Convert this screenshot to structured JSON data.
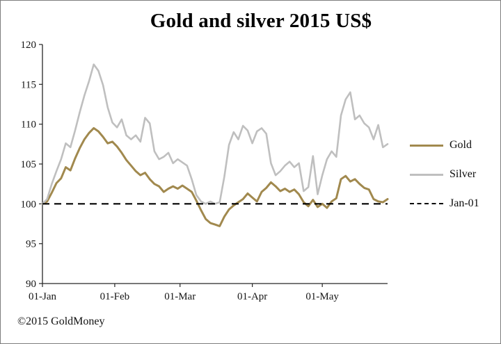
{
  "chart_data": {
    "type": "line",
    "title": "Gold and silver 2015 US$",
    "xlabel": "",
    "ylabel": "",
    "ylim": [
      90,
      120
    ],
    "y_ticks": [
      90,
      95,
      100,
      105,
      110,
      115,
      120
    ],
    "x_range": [
      0,
      148
    ],
    "x_unit": "days since 01-Jan-2015",
    "x_ticks": [
      {
        "pos": 0,
        "label": "01-Jan"
      },
      {
        "pos": 31,
        "label": "01-Feb"
      },
      {
        "pos": 59,
        "label": "01-Mar"
      },
      {
        "pos": 90,
        "label": "01-Apr"
      },
      {
        "pos": 120,
        "label": "01-May"
      }
    ],
    "grid": false,
    "legend_position": "right",
    "axis_color": "#262626",
    "tick_label_color": "#151515",
    "x": [
      0,
      2,
      4,
      6,
      8,
      10,
      12,
      14,
      16,
      18,
      20,
      22,
      24,
      26,
      28,
      30,
      32,
      34,
      36,
      38,
      40,
      42,
      44,
      46,
      48,
      50,
      52,
      54,
      56,
      58,
      60,
      62,
      64,
      66,
      68,
      70,
      72,
      74,
      76,
      78,
      80,
      82,
      84,
      86,
      88,
      90,
      92,
      94,
      96,
      98,
      100,
      102,
      104,
      106,
      108,
      110,
      112,
      114,
      116,
      118,
      120,
      122,
      124,
      126,
      128,
      130,
      132,
      134,
      136,
      138,
      140,
      142,
      144,
      146,
      148
    ],
    "series": [
      {
        "name": "Gold",
        "color": "#A1894E",
        "width": 3,
        "values": [
          100.0,
          100.3,
          101.4,
          102.6,
          103.2,
          104.6,
          104.2,
          105.7,
          107.0,
          108.1,
          108.9,
          109.5,
          109.1,
          108.4,
          107.6,
          107.8,
          107.2,
          106.4,
          105.5,
          104.8,
          104.1,
          103.6,
          103.9,
          103.1,
          102.5,
          102.2,
          101.5,
          101.9,
          102.2,
          101.9,
          102.3,
          101.9,
          101.5,
          100.4,
          99.2,
          98.1,
          97.6,
          97.4,
          97.2,
          98.4,
          99.3,
          99.8,
          100.2,
          100.6,
          101.3,
          100.8,
          100.3,
          101.5,
          102.0,
          102.7,
          102.2,
          101.6,
          101.9,
          101.5,
          101.8,
          101.2,
          100.2,
          99.7,
          100.5,
          99.6,
          100.0,
          99.5,
          100.3,
          100.7,
          103.1,
          103.5,
          102.8,
          103.1,
          102.5,
          102.0,
          101.8,
          100.6,
          100.3,
          100.2,
          100.6
        ]
      },
      {
        "name": "Silver",
        "color": "#BFBFBF",
        "width": 2.6,
        "values": [
          100.0,
          100.6,
          102.5,
          104.1,
          105.6,
          107.6,
          107.1,
          109.2,
          111.5,
          113.6,
          115.4,
          117.5,
          116.7,
          114.9,
          112.1,
          110.2,
          109.6,
          110.6,
          108.6,
          108.1,
          108.6,
          107.8,
          110.8,
          110.1,
          106.6,
          105.6,
          105.9,
          106.4,
          105.1,
          105.6,
          105.2,
          104.8,
          103.1,
          101.1,
          100.3,
          100.0,
          100.3,
          100.0,
          100.2,
          103.4,
          107.4,
          109.0,
          108.1,
          109.8,
          109.2,
          107.6,
          109.1,
          109.5,
          108.8,
          105.1,
          103.6,
          104.1,
          104.8,
          105.3,
          104.6,
          105.1,
          101.6,
          102.1,
          106.0,
          101.2,
          103.6,
          105.6,
          106.6,
          105.9,
          111.1,
          113.1,
          114.0,
          110.6,
          111.1,
          110.1,
          109.6,
          108.1,
          109.9,
          107.1,
          107.5
        ]
      }
    ],
    "ref_line": {
      "value": 100,
      "label": "Jan-01",
      "color": "#000000",
      "style": "dashed"
    }
  },
  "footer": {
    "copyright": "©2015 GoldMoney"
  }
}
